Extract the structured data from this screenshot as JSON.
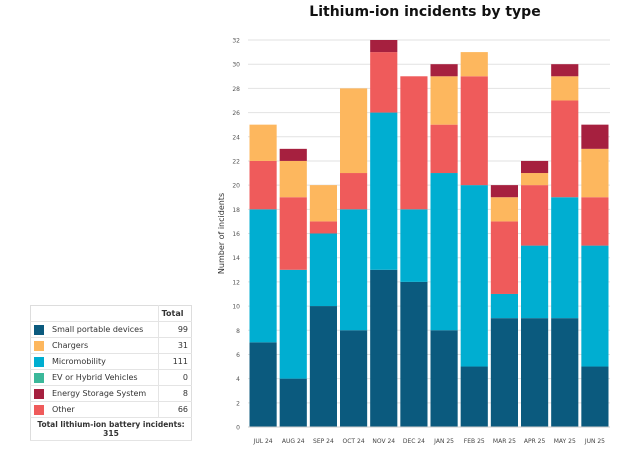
{
  "chart_data": {
    "type": "bar",
    "stacked": true,
    "title": "Lithium-ion incidents by type",
    "xlabel": "",
    "ylabel": "Number of incidents",
    "ylim": [
      0,
      32
    ],
    "yticks": [
      0,
      2,
      4,
      6,
      8,
      10,
      12,
      14,
      16,
      18,
      20,
      22,
      24,
      26,
      28,
      30,
      32
    ],
    "grid": true,
    "categories": [
      "JUL 24",
      "AUG 24",
      "SEP 24",
      "OCT 24",
      "NOV 24",
      "DEC 24",
      "JAN 25",
      "FEB 25",
      "MAR 25",
      "APR 25",
      "MAY 25",
      "JUN 25"
    ],
    "series": [
      {
        "name": "Small portable devices",
        "color": "#0b5a7e",
        "values": [
          7,
          4,
          10,
          8,
          13,
          12,
          8,
          5,
          9,
          9,
          9,
          5
        ]
      },
      {
        "name": "Micromobility",
        "color": "#00aed1",
        "values": [
          11,
          9,
          6,
          10,
          13,
          6,
          13,
          15,
          2,
          6,
          10,
          10
        ]
      },
      {
        "name": "Other",
        "color": "#ef5b5b",
        "values": [
          4,
          6,
          1,
          3,
          5,
          11,
          4,
          9,
          6,
          5,
          8,
          4
        ]
      },
      {
        "name": "Chargers",
        "color": "#fdb75e",
        "values": [
          3,
          3,
          3,
          7,
          0,
          0,
          4,
          2,
          2,
          1,
          2,
          4
        ]
      },
      {
        "name": "EV or Hybrid Vehicles",
        "color": "#3bb89a",
        "values": [
          0,
          0,
          0,
          0,
          0,
          0,
          0,
          0,
          0,
          0,
          0,
          0
        ]
      },
      {
        "name": "Energy Storage System",
        "color": "#a6203f",
        "values": [
          0,
          1,
          0,
          0,
          1,
          0,
          1,
          0,
          1,
          1,
          1,
          2
        ]
      }
    ]
  },
  "legend_table": {
    "header": "Total",
    "rows": [
      {
        "label": "Small portable devices",
        "total": "99",
        "color": "#0b5a7e"
      },
      {
        "label": "Chargers",
        "total": "31",
        "color": "#fdb75e"
      },
      {
        "label": "Micromobility",
        "total": "111",
        "color": "#00aed1"
      },
      {
        "label": "EV or Hybrid Vehicles",
        "total": "0",
        "color": "#3bb89a"
      },
      {
        "label": "Energy Storage System",
        "total": "8",
        "color": "#a6203f"
      },
      {
        "label": "Other",
        "total": "66",
        "color": "#ef5b5b"
      }
    ],
    "footer": "Total lithium-ion battery incidents: 315"
  }
}
